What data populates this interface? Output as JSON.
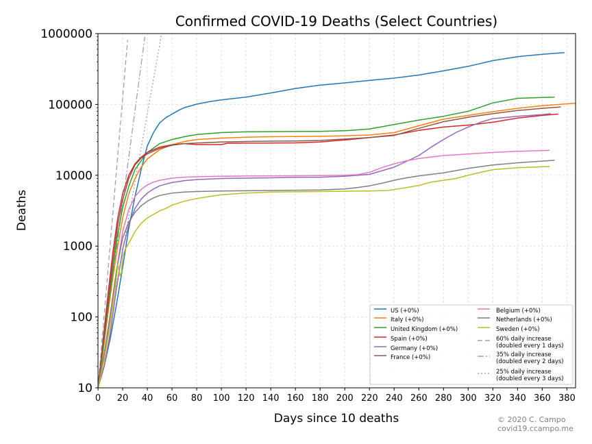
{
  "credit": {
    "line1": "© 2020 C. Campo",
    "line2": "covid19.ccampo.me"
  },
  "colors": {
    "US": "#1f77b4",
    "Italy": "#ff7f0e",
    "United Kingdom": "#2ca02c",
    "Spain": "#d62728",
    "Germany": "#9467bd",
    "France": "#8c564b",
    "Belgium": "#e377c2",
    "Netherlands": "#7f7f7f",
    "Sweden": "#bcbd22",
    "reference": "#a0a0a0"
  },
  "chart_data": {
    "type": "line",
    "title": "Confirmed COVID-19 Deaths (Select Countries)",
    "xlabel": "Days since 10 deaths",
    "ylabel": "Deaths",
    "xlim": [
      0,
      387
    ],
    "ylim": [
      10,
      1000000
    ],
    "yscale": "log",
    "grid": true,
    "legend_position": "lower-right",
    "x_ticks": [
      0,
      20,
      40,
      60,
      80,
      100,
      120,
      140,
      160,
      180,
      200,
      220,
      240,
      260,
      280,
      300,
      320,
      340,
      360,
      380
    ],
    "y_ticks": [
      10,
      100,
      1000,
      10000,
      100000,
      1000000
    ],
    "y_tick_labels": [
      "10",
      "100",
      "1000",
      "10000",
      "100000",
      "1000000"
    ],
    "series": [
      {
        "name": "US (+0%)",
        "x": [
          0,
          5,
          10,
          15,
          20,
          25,
          30,
          35,
          40,
          45,
          50,
          55,
          60,
          65,
          70,
          80,
          90,
          100,
          120,
          140,
          160,
          180,
          200,
          220,
          240,
          260,
          280,
          300,
          320,
          340,
          360,
          378
        ],
        "y": [
          10,
          20,
          50,
          150,
          500,
          1800,
          5000,
          12000,
          26000,
          40000,
          55000,
          65000,
          73000,
          82000,
          90000,
          101000,
          109000,
          116000,
          127000,
          145000,
          168000,
          187000,
          201000,
          218000,
          235000,
          260000,
          298000,
          345000,
          415000,
          472000,
          510000,
          540000
        ]
      },
      {
        "name": "Italy (+0%)",
        "x": [
          0,
          4,
          8,
          12,
          16,
          20,
          25,
          30,
          35,
          40,
          50,
          60,
          70,
          80,
          100,
          120,
          140,
          160,
          180,
          200,
          220,
          240,
          260,
          280,
          300,
          320,
          340,
          360,
          387
        ],
        "y": [
          10,
          30,
          110,
          350,
          1000,
          2500,
          5500,
          9000,
          13000,
          17000,
          23000,
          27000,
          30000,
          32000,
          33500,
          34500,
          35000,
          35300,
          35500,
          36000,
          37000,
          40000,
          50000,
          62000,
          70000,
          79000,
          88000,
          96000,
          104000
        ]
      },
      {
        "name": "United Kingdom (+0%)",
        "x": [
          0,
          4,
          8,
          12,
          16,
          20,
          25,
          30,
          35,
          40,
          50,
          60,
          70,
          80,
          100,
          120,
          140,
          160,
          180,
          200,
          220,
          240,
          260,
          280,
          300,
          320,
          340,
          370
        ],
        "y": [
          10,
          35,
          130,
          450,
          1500,
          3500,
          7000,
          12000,
          16000,
          21000,
          28000,
          32000,
          35000,
          37500,
          40000,
          41000,
          41300,
          41500,
          41700,
          42500,
          45000,
          52000,
          60000,
          68000,
          80000,
          105000,
          122000,
          127000
        ]
      },
      {
        "name": "Spain (+0%)",
        "x": [
          0,
          4,
          8,
          12,
          16,
          20,
          25,
          30,
          35,
          40,
          50,
          60,
          70,
          80,
          90,
          100,
          105,
          120,
          140,
          160,
          180,
          200,
          220,
          240,
          260,
          280,
          300,
          320,
          340,
          360,
          373
        ],
        "y": [
          10,
          45,
          200,
          800,
          2500,
          5500,
          10000,
          14500,
          18000,
          21000,
          25000,
          27000,
          28000,
          27100,
          27100,
          27100,
          28300,
          28400,
          28500,
          28700,
          29500,
          31500,
          34000,
          37000,
          43000,
          48000,
          51000,
          56000,
          64000,
          70000,
          73000
        ]
      },
      {
        "name": "Germany (+0%)",
        "x": [
          0,
          5,
          10,
          15,
          20,
          25,
          30,
          35,
          40,
          45,
          50,
          55,
          60,
          70,
          80,
          100,
          120,
          140,
          160,
          180,
          200,
          220,
          240,
          260,
          270,
          280,
          290,
          300,
          310,
          320,
          340,
          360,
          367
        ],
        "y": [
          10,
          20,
          60,
          250,
          900,
          2000,
          3400,
          4600,
          5600,
          6400,
          7100,
          7500,
          7900,
          8400,
          8700,
          9000,
          9100,
          9200,
          9350,
          9400,
          9700,
          10300,
          13000,
          19000,
          25000,
          32000,
          40000,
          48000,
          56000,
          63000,
          68000,
          72000,
          74000
        ]
      },
      {
        "name": "France (+0%)",
        "x": [
          0,
          4,
          8,
          12,
          16,
          20,
          25,
          30,
          35,
          40,
          50,
          60,
          70,
          80,
          100,
          120,
          140,
          160,
          180,
          200,
          220,
          240,
          260,
          280,
          300,
          320,
          340,
          360,
          375
        ],
        "y": [
          10,
          40,
          150,
          600,
          2000,
          4500,
          9000,
          14000,
          17500,
          20000,
          24000,
          26500,
          28000,
          28500,
          29500,
          30000,
          30300,
          30500,
          31000,
          32500,
          34000,
          36500,
          46000,
          57000,
          66000,
          74000,
          82000,
          88000,
          92000
        ]
      },
      {
        "name": "Belgium (+0%)",
        "x": [
          0,
          5,
          10,
          15,
          20,
          25,
          30,
          35,
          40,
          45,
          50,
          60,
          70,
          80,
          100,
          120,
          140,
          160,
          180,
          200,
          210,
          220,
          230,
          240,
          250,
          260,
          280,
          300,
          320,
          340,
          366
        ],
        "y": [
          10,
          25,
          100,
          450,
          1600,
          3300,
          5000,
          6300,
          7300,
          8000,
          8500,
          9100,
          9400,
          9550,
          9700,
          9750,
          9800,
          9850,
          9900,
          10000,
          10200,
          11000,
          12800,
          14500,
          16000,
          17200,
          19000,
          20000,
          21000,
          21800,
          22500
        ]
      },
      {
        "name": "Netherlands (+0%)",
        "x": [
          0,
          5,
          10,
          15,
          20,
          25,
          30,
          35,
          40,
          45,
          50,
          60,
          70,
          80,
          100,
          120,
          140,
          160,
          180,
          200,
          210,
          220,
          230,
          240,
          250,
          260,
          280,
          300,
          320,
          340,
          370
        ],
        "y": [
          10,
          30,
          110,
          450,
          1300,
          2200,
          3000,
          3700,
          4300,
          4800,
          5200,
          5600,
          5800,
          5900,
          6000,
          6050,
          6100,
          6150,
          6200,
          6400,
          6700,
          7100,
          7700,
          8500,
          9200,
          9800,
          10800,
          12500,
          14000,
          15000,
          16300
        ]
      },
      {
        "name": "Sweden (+0%)",
        "x": [
          0,
          5,
          10,
          14,
          16,
          18,
          19,
          20,
          22,
          25,
          30,
          35,
          40,
          45,
          50,
          55,
          60,
          70,
          80,
          90,
          100,
          120,
          140,
          160,
          180,
          200,
          220,
          235,
          250,
          260,
          270,
          280,
          290,
          300,
          310,
          320,
          340,
          366
        ],
        "y": [
          10,
          25,
          80,
          250,
          550,
          380,
          420,
          700,
          900,
          1100,
          1600,
          2100,
          2500,
          2800,
          3150,
          3400,
          3800,
          4300,
          4700,
          5000,
          5300,
          5600,
          5800,
          5850,
          5900,
          5950,
          6000,
          6100,
          6700,
          7200,
          8000,
          8500,
          9000,
          10000,
          11000,
          12000,
          12800,
          13300
        ]
      },
      {
        "name": "60% daily increase\n(doubled every 1 days)",
        "style": "dashed",
        "x": [
          0,
          24
        ],
        "y": [
          10,
          808281
        ]
      },
      {
        "name": "35% daily increase\n(doubled every 2 days)",
        "style": "dashdot",
        "x": [
          0,
          38
        ],
        "y": [
          10,
          902800
        ]
      },
      {
        "name": "25% daily increase\n(doubled every 3 days)",
        "style": "dotted",
        "x": [
          0,
          52
        ],
        "y": [
          10,
          1092830
        ]
      }
    ]
  }
}
